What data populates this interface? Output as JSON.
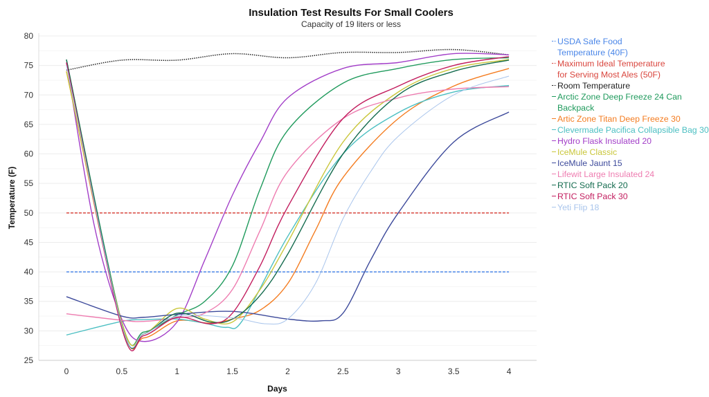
{
  "chart_data": {
    "type": "line",
    "title": "Insulation Test Results For Small Coolers",
    "subtitle": "Capacity of 19 liters or less",
    "xlabel": "Days",
    "ylabel": "Temperature (F)",
    "xlim": [
      -0.25,
      4.25
    ],
    "ylim": [
      25,
      80
    ],
    "xticks": [
      "0",
      "0.5",
      "1",
      "1.5",
      "2",
      "2.5",
      "3",
      "3.5",
      "4"
    ],
    "yticks": [
      "25",
      "30",
      "35",
      "40",
      "45",
      "50",
      "55",
      "60",
      "65",
      "70",
      "75",
      "80"
    ],
    "grid": true,
    "legend_position": "right",
    "series": [
      {
        "name": "USDA Safe Food\nTemperature (40F)",
        "color": "#4a86e8",
        "style": "dashed",
        "x": [
          0,
          4
        ],
        "y": [
          40,
          40
        ]
      },
      {
        "name": "Maximum Ideal Temperature\nfor Serving Most Ales (50F)",
        "color": "#d9453d",
        "style": "dashed",
        "x": [
          0,
          4
        ],
        "y": [
          50,
          50
        ]
      },
      {
        "name": "Room Temperature",
        "color": "#222222",
        "style": "dotted",
        "x": [
          0,
          0.5,
          1,
          1.5,
          2,
          2.5,
          3,
          3.5,
          4
        ],
        "y": [
          74.2,
          75.9,
          75.9,
          77,
          76.3,
          77.2,
          77.2,
          77.7,
          76.8
        ]
      },
      {
        "name": "Arctic Zone Deep Freeze 24 Can Backpack",
        "color": "#1f9a5c",
        "style": "solid",
        "x": [
          0,
          0.5,
          0.7,
          1,
          1.25,
          1.5,
          1.75,
          2,
          2.5,
          3,
          3.5,
          4
        ],
        "y": [
          76,
          31.5,
          29.8,
          32.7,
          35,
          41,
          54,
          64,
          72,
          74.5,
          76,
          76.3
        ]
      },
      {
        "name": "Artic Zone Titan Deep Freeze 30",
        "color": "#f47c20",
        "style": "solid",
        "x": [
          0,
          0.5,
          0.7,
          1,
          1.3,
          1.5,
          1.75,
          2,
          2.25,
          2.5,
          3,
          3.5,
          4
        ],
        "y": [
          74,
          31,
          28.8,
          31.7,
          31.3,
          32,
          33.5,
          38,
          47,
          56,
          66,
          71.5,
          74.5
        ]
      },
      {
        "name": "Clevermade Pacifica Collapsible Bag 30",
        "color": "#4bbfc2",
        "style": "solid",
        "x": [
          0,
          0.5,
          0.7,
          1,
          1.25,
          1.45,
          1.6,
          2,
          2.5,
          3,
          3.5,
          4
        ],
        "y": [
          29.3,
          31.6,
          31.9,
          32,
          31.3,
          30.6,
          32,
          46,
          60,
          67,
          70.5,
          71.6
        ]
      },
      {
        "name": "Hydro Flask Insulated 20",
        "color": "#a23ec8",
        "style": "solid",
        "x": [
          0,
          0.25,
          0.5,
          0.7,
          1,
          1.25,
          1.5,
          1.75,
          2,
          2.5,
          3,
          3.5,
          4
        ],
        "y": [
          75.5,
          48,
          32,
          28.2,
          31.5,
          42,
          53,
          62,
          69.5,
          74.5,
          75.5,
          77,
          76.8
        ]
      },
      {
        "name": "IceMule Classic",
        "color": "#c9c63a",
        "style": "solid",
        "x": [
          0,
          0.5,
          0.7,
          1,
          1.25,
          1.5,
          1.75,
          2,
          2.5,
          3,
          3.5,
          4
        ],
        "y": [
          74,
          31.5,
          29.5,
          33.8,
          32,
          31.5,
          37,
          45,
          62,
          70.5,
          74.5,
          76
        ]
      },
      {
        "name": "IceMule Jaunt 15",
        "color": "#3d4a9b",
        "style": "solid",
        "x": [
          0,
          0.5,
          0.7,
          1,
          1.5,
          2,
          2.3,
          2.5,
          2.75,
          3,
          3.5,
          4
        ],
        "y": [
          35.8,
          32.5,
          32.3,
          32.8,
          33.3,
          32,
          31.7,
          33,
          42,
          50,
          62,
          67.1
        ]
      },
      {
        "name": "Lifewit Large Insulated 24",
        "color": "#ee7cb0",
        "style": "solid",
        "x": [
          0,
          0.5,
          0.7,
          1,
          1.25,
          1.5,
          1.75,
          2,
          2.5,
          3,
          3.5,
          4
        ],
        "y": [
          32.9,
          31.8,
          31.6,
          32.2,
          33,
          37,
          47,
          57,
          66,
          69.5,
          71,
          71.4
        ]
      },
      {
        "name": "RTIC Soft Pack 20",
        "color": "#146b4e",
        "style": "solid",
        "x": [
          0,
          0.5,
          0.7,
          1,
          1.3,
          1.5,
          1.75,
          2,
          2.5,
          3,
          3.5,
          4
        ],
        "y": [
          76,
          31,
          29.5,
          33,
          31.5,
          32,
          36,
          43,
          60,
          70,
          74,
          75.9
        ]
      },
      {
        "name": "RTIC Soft Pack 30",
        "color": "#c21d5e",
        "style": "solid",
        "x": [
          0,
          0.5,
          0.7,
          1,
          1.3,
          1.5,
          1.75,
          2,
          2.5,
          3,
          3.5,
          4
        ],
        "y": [
          75.5,
          30.5,
          29.2,
          32.3,
          31.2,
          33,
          41,
          51,
          66,
          71.5,
          75,
          76.5
        ]
      },
      {
        "name": "Yeti Flip 18",
        "color": "#a9c5ec",
        "style": "thin",
        "x": [
          0,
          0.5,
          0.7,
          1,
          1.5,
          1.8,
          2,
          2.25,
          2.5,
          2.75,
          3,
          3.5,
          4
        ],
        "y": [
          75,
          31,
          29.5,
          32.5,
          32.2,
          31.2,
          32,
          38,
          49,
          57,
          63,
          70,
          73.2
        ]
      }
    ]
  }
}
